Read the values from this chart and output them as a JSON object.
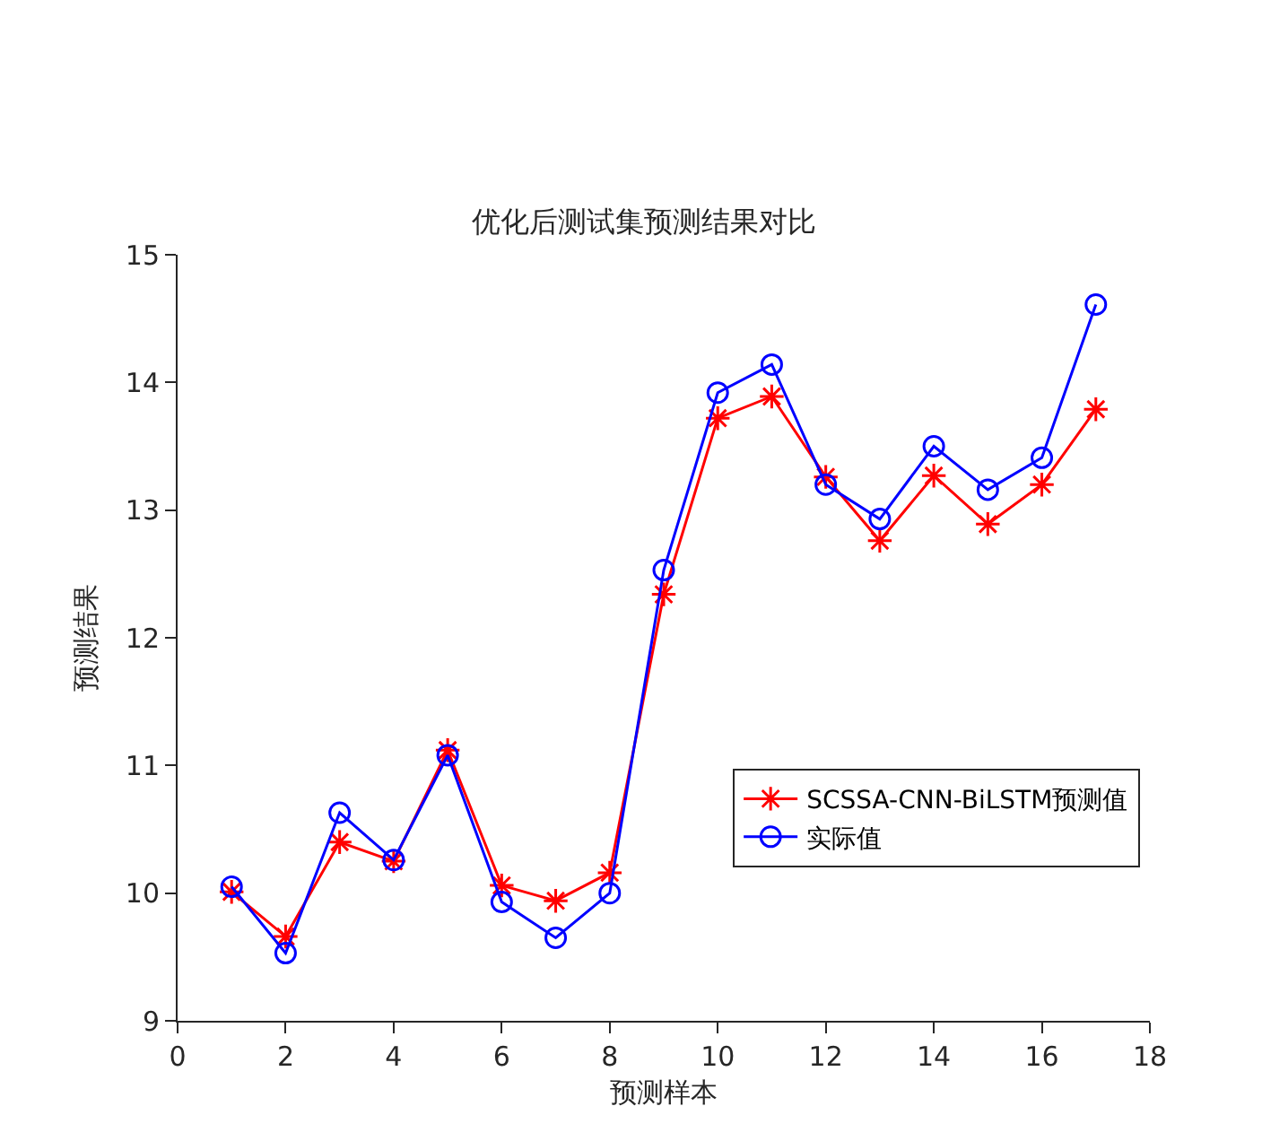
{
  "chart_data": {
    "type": "line",
    "title": "优化后测试集预测结果对比",
    "xlabel": "预测样本",
    "ylabel": "预测结果",
    "x": [
      1,
      2,
      3,
      4,
      5,
      6,
      7,
      8,
      9,
      10,
      11,
      12,
      13,
      14,
      15,
      16,
      17
    ],
    "series": [
      {
        "name": "SCSSA-CNN-BiLSTM预测值",
        "color": "#ff0000",
        "marker": "cross",
        "values": [
          10.01,
          9.66,
          10.4,
          10.25,
          11.12,
          10.06,
          9.94,
          10.16,
          12.34,
          13.72,
          13.89,
          13.26,
          12.76,
          13.27,
          12.89,
          13.2,
          13.79
        ]
      },
      {
        "name": "实际值",
        "color": "#0000ff",
        "marker": "circle",
        "values": [
          10.05,
          9.53,
          10.63,
          10.26,
          11.08,
          9.93,
          9.65,
          10.0,
          12.53,
          13.92,
          14.14,
          13.2,
          12.93,
          13.5,
          13.16,
          13.41,
          14.61
        ]
      }
    ],
    "xlim": [
      0,
      18
    ],
    "xticks": [
      0,
      2,
      4,
      6,
      8,
      10,
      12,
      14,
      16,
      18
    ],
    "ylim": [
      9,
      15
    ],
    "yticks": [
      9,
      10,
      11,
      12,
      13,
      14,
      15
    ],
    "legend": "bottom right",
    "line_style": "solid"
  }
}
